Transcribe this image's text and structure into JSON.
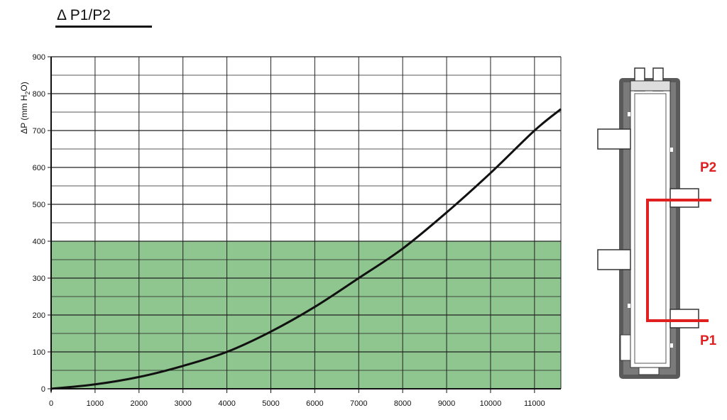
{
  "title": "Δ P1/P2",
  "chart_data": {
    "type": "line",
    "title": "Δ P1/P2",
    "xlabel": "",
    "ylabel_parts": [
      "ΔP (mm H",
      "2",
      "O)"
    ],
    "xlim": [
      0,
      11600
    ],
    "ylim": [
      0,
      900
    ],
    "x_ticks": [
      0,
      1000,
      2000,
      3000,
      4000,
      5000,
      6000,
      7000,
      8000,
      9000,
      10000,
      11000
    ],
    "y_ticks": [
      0,
      100,
      200,
      300,
      400,
      500,
      600,
      700,
      800,
      900
    ],
    "grid": true,
    "highlight_band": {
      "y_from": 0,
      "y_to": 400,
      "color": "#8fc58f"
    },
    "series": [
      {
        "color": "#111111",
        "x": [
          0,
          1000,
          2000,
          3000,
          4000,
          5000,
          6000,
          7000,
          8000,
          9000,
          10000,
          11000,
          11600
        ],
        "y": [
          0,
          12,
          32,
          62,
          100,
          155,
          222,
          300,
          380,
          478,
          585,
          700,
          758
        ]
      }
    ]
  },
  "diagram": {
    "labels": {
      "p1": "P1",
      "p2": "P2"
    },
    "line_color": "#e02020",
    "body_color": "#555555"
  }
}
